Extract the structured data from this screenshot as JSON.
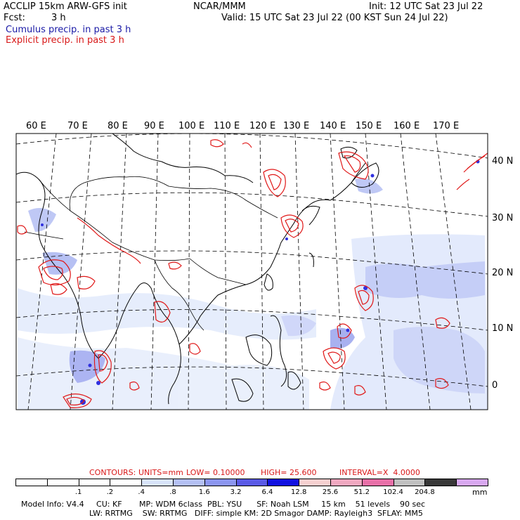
{
  "header": {
    "line1_left": "ACCLIP 15km ARW-GFS init",
    "line1_center": "NCAR/MMM",
    "line1_right": "Init: 12 UTC Sat 23 Jul 22",
    "line2_left_label": "Fcst:",
    "line2_left_value": "3 h",
    "line2_right": "Valid: 15 UTC Sat 23 Jul 22 (00 KST Sun 24 Jul 22)",
    "legend_cumulus": "Cumulus precip. in past 3 h",
    "legend_explicit": "Explicit precip. in past 3 h"
  },
  "map": {
    "lon_labels": [
      "60 E",
      "70 E",
      "80 E",
      "90 E",
      "100 E",
      "110 E",
      "120 E",
      "130 E",
      "140 E",
      "150 E",
      "160 E",
      "170 E"
    ],
    "lat_labels": [
      "40 N",
      "30 N",
      "20 N",
      "10 N",
      "0"
    ]
  },
  "contours": {
    "label": "CONTOURS:",
    "units": "UNITS=mm",
    "low": "LOW= 0.10000",
    "high": "HIGH= 25.600",
    "interval": "INTERVAL=X  4.0000"
  },
  "colorbar": {
    "labels": [
      ".1",
      ".2",
      ".4",
      ".8",
      "1.6",
      "3.2",
      "6.4",
      "12.8",
      "25.6",
      "51.2",
      "102.4",
      "204.8"
    ],
    "unit": "mm",
    "colors": [
      "#ffffff",
      "#ffffff",
      "#ffffff",
      "#ffffff",
      "#d8e4fa",
      "#b4c0f4",
      "#8c96f0",
      "#5a5ae6",
      "#1010e0",
      "#f6d0d0",
      "#f0a8c0",
      "#e870a8",
      "#c0c0c0",
      "#383838",
      "#d8a8f0"
    ]
  },
  "footer": {
    "line1": "Model Info: V4.4     CU: KF       MP: WDM 6class  PBL: YSU      SF: Noah LSM     15 km    51 levels    90 sec",
    "line2": "LW: RRTMG    SW: RRTMG   DIFF: simple KM: 2D Smagor DAMP: Rayleigh3  SFLAY: MM5"
  }
}
